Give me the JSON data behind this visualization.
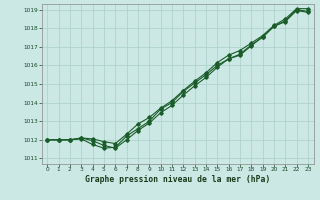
{
  "title": "Graphe pression niveau de la mer (hPa)",
  "bg_color": "#cce8e4",
  "grid_color": "#aacfca",
  "line_color": "#1a5c2a",
  "marker_color": "#1a5c2a",
  "xlim": [
    -0.5,
    23.5
  ],
  "ylim": [
    1010.7,
    1019.3
  ],
  "xticks": [
    0,
    1,
    2,
    3,
    4,
    5,
    6,
    7,
    8,
    9,
    10,
    11,
    12,
    13,
    14,
    15,
    16,
    17,
    18,
    19,
    20,
    21,
    22,
    23
  ],
  "yticks": [
    1011,
    1012,
    1013,
    1014,
    1015,
    1016,
    1017,
    1018,
    1019
  ],
  "series1": [
    1012.0,
    1012.0,
    1012.0,
    1012.05,
    1011.75,
    1011.55,
    1011.6,
    1012.2,
    1012.6,
    1013.0,
    1013.65,
    1014.0,
    1014.6,
    1015.05,
    1015.5,
    1016.0,
    1016.35,
    1016.55,
    1017.05,
    1017.55,
    1018.1,
    1018.35,
    1018.95,
    1018.85
  ],
  "series2": [
    1012.0,
    1012.0,
    1012.0,
    1012.1,
    1012.05,
    1011.9,
    1011.8,
    1012.3,
    1012.85,
    1013.2,
    1013.7,
    1014.1,
    1014.65,
    1015.15,
    1015.6,
    1016.15,
    1016.55,
    1016.8,
    1017.2,
    1017.6,
    1018.15,
    1018.5,
    1019.05,
    1019.05
  ],
  "series3": [
    1012.0,
    1012.0,
    1012.0,
    1012.1,
    1011.95,
    1011.7,
    1011.55,
    1012.0,
    1012.5,
    1012.9,
    1013.45,
    1013.85,
    1014.4,
    1014.9,
    1015.35,
    1015.9,
    1016.35,
    1016.6,
    1017.1,
    1017.5,
    1018.1,
    1018.4,
    1019.0,
    1018.9
  ]
}
